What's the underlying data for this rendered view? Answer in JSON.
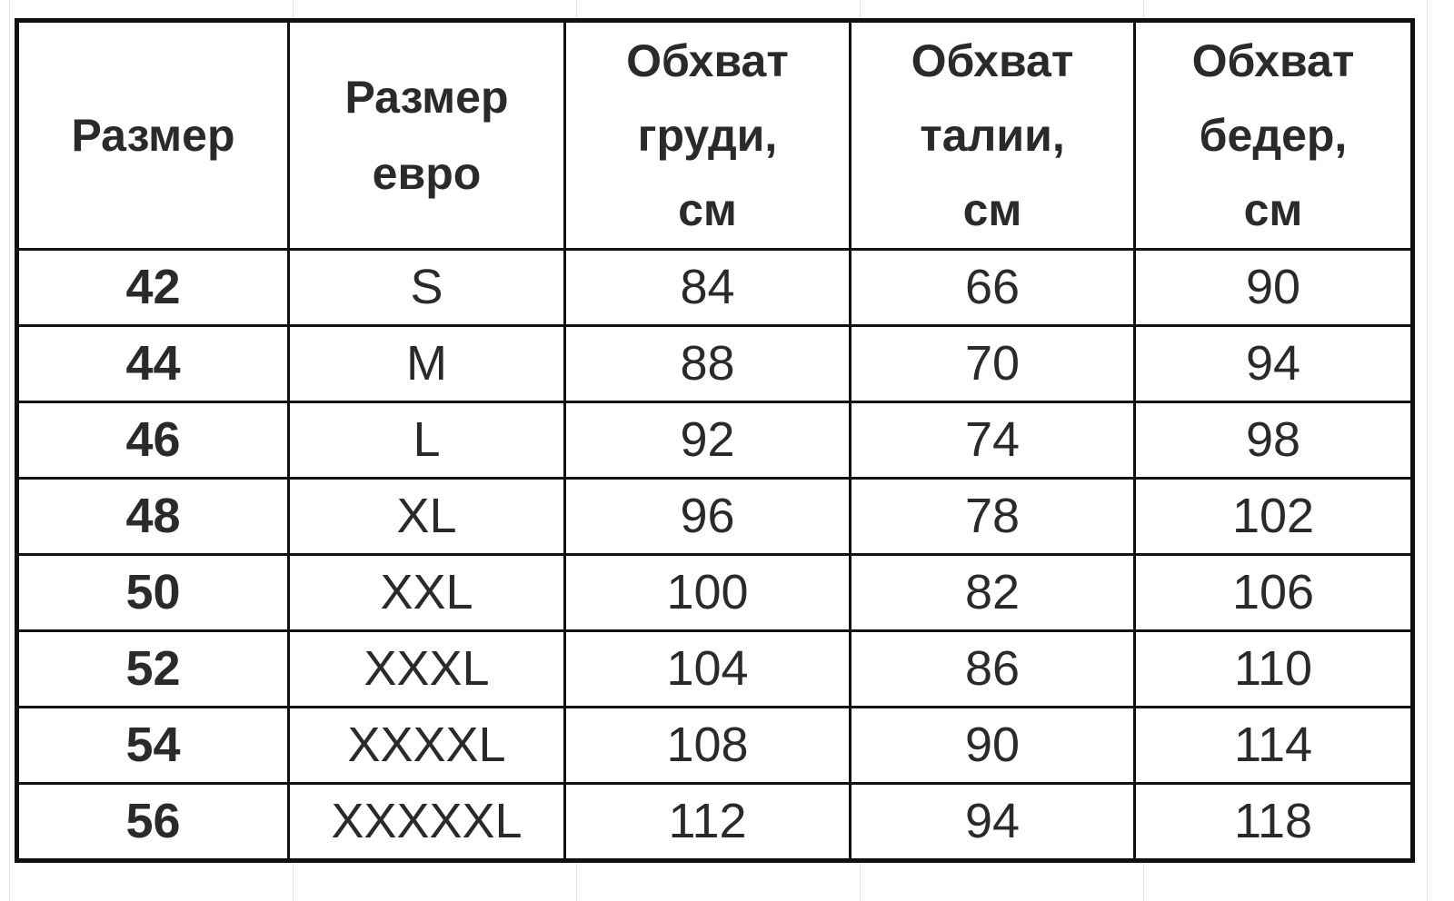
{
  "headers": [
    [
      "Размер"
    ],
    [
      "Размер",
      "евро"
    ],
    [
      "Обхват",
      "груди,",
      "см"
    ],
    [
      "Обхват",
      "талии,",
      "см"
    ],
    [
      "Обхват",
      "бедер,",
      "см"
    ]
  ],
  "rows": [
    [
      "42",
      "S",
      "84",
      "66",
      "90"
    ],
    [
      "44",
      "M",
      "88",
      "70",
      "94"
    ],
    [
      "46",
      "L",
      "92",
      "74",
      "98"
    ],
    [
      "48",
      "XL",
      "96",
      "78",
      "102"
    ],
    [
      "50",
      "XXL",
      "100",
      "82",
      "106"
    ],
    [
      "52",
      "XXXL",
      "104",
      "86",
      "110"
    ],
    [
      "54",
      "XXXXL",
      "108",
      "90",
      "114"
    ],
    [
      "56",
      "XXXXXL",
      "112",
      "94",
      "118"
    ]
  ]
}
